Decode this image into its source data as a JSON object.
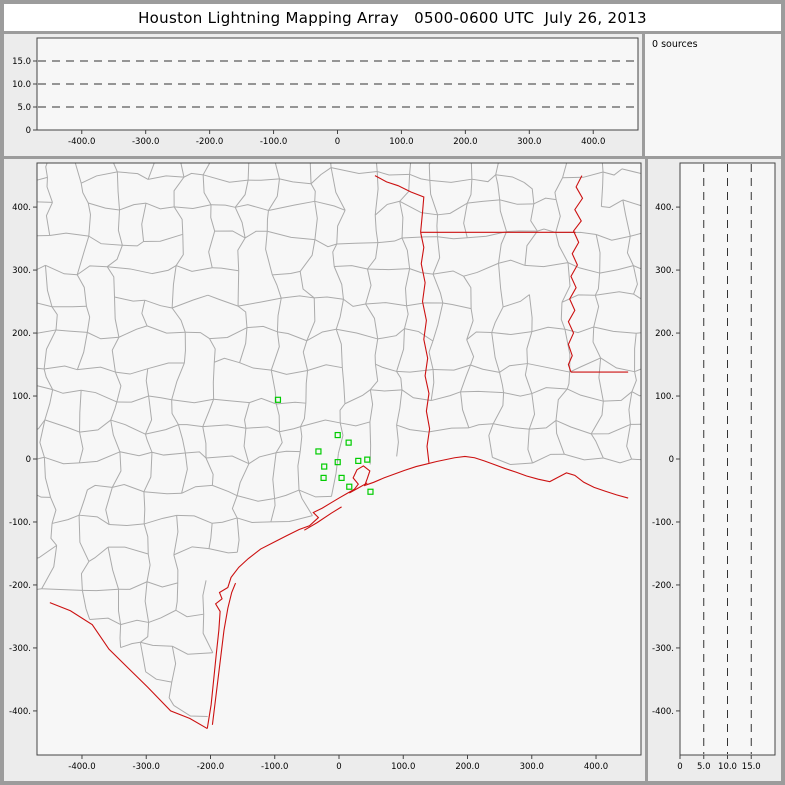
{
  "title": "Houston Lightning Mapping Array   0500-0600 UTC  July 26, 2013",
  "sources_panel": {
    "label": "0 sources"
  },
  "colors": {
    "county": "#ababab",
    "border": "#cc1111",
    "station": "#00cc00",
    "dash": "#333333",
    "axis": "#444444",
    "plot_bg": "#f7f7f7",
    "frame": "#9c9c9c"
  },
  "top_panel": {
    "xlim": [
      -470,
      470
    ],
    "ylim": [
      0,
      20
    ],
    "dash_y": [
      5,
      10,
      15
    ],
    "xticks": [
      {
        "v": -400,
        "l": "-400.0"
      },
      {
        "v": -300,
        "l": "-300.0"
      },
      {
        "v": -200,
        "l": "-200.0"
      },
      {
        "v": -100,
        "l": "-100.0"
      },
      {
        "v": 0,
        "l": "0"
      },
      {
        "v": 100,
        "l": "100.0"
      },
      {
        "v": 200,
        "l": "200.0"
      },
      {
        "v": 300,
        "l": "300.0"
      },
      {
        "v": 400,
        "l": "400.0"
      }
    ],
    "yticks": [
      {
        "v": 15,
        "l": "15.0"
      },
      {
        "v": 10,
        "l": "10.0"
      },
      {
        "v": 5,
        "l": "5.0"
      },
      {
        "v": 0,
        "l": "0"
      }
    ]
  },
  "map_panel": {
    "xlim": [
      -470,
      470
    ],
    "ylim": [
      -470,
      470
    ],
    "xticks": [
      {
        "v": -400,
        "l": "-400.0"
      },
      {
        "v": -300,
        "l": "-300.0"
      },
      {
        "v": -200,
        "l": "-200.0"
      },
      {
        "v": -100,
        "l": "-100.0"
      },
      {
        "v": 0,
        "l": "0"
      },
      {
        "v": 100,
        "l": "100.0"
      },
      {
        "v": 200,
        "l": "200.0"
      },
      {
        "v": 300,
        "l": "300.0"
      },
      {
        "v": 400,
        "l": "400.0"
      }
    ],
    "yticks": [
      {
        "v": 400,
        "l": "400."
      },
      {
        "v": 300,
        "l": "300."
      },
      {
        "v": 200,
        "l": "200."
      },
      {
        "v": 100,
        "l": "100."
      },
      {
        "v": 0,
        "l": "0"
      },
      {
        "v": -100,
        "l": "-100."
      },
      {
        "v": -200,
        "l": "-200."
      },
      {
        "v": -300,
        "l": "-300."
      },
      {
        "v": -400,
        "l": "-400."
      }
    ]
  },
  "right_panel": {
    "xlim": [
      0,
      20
    ],
    "ylim": [
      -470,
      470
    ],
    "dash_x": [
      5,
      10,
      15
    ],
    "xticks": [
      {
        "v": 0,
        "l": "0"
      },
      {
        "v": 5,
        "l": "5.0"
      },
      {
        "v": 10,
        "l": "10.0"
      },
      {
        "v": 15,
        "l": "15.0"
      }
    ],
    "yticks": [
      {
        "v": 400,
        "l": "400."
      },
      {
        "v": 300,
        "l": "300."
      },
      {
        "v": 200,
        "l": "200."
      },
      {
        "v": 100,
        "l": "100."
      },
      {
        "v": 0,
        "l": "0"
      },
      {
        "v": -100,
        "l": "-100."
      },
      {
        "v": -200,
        "l": "-200."
      },
      {
        "v": -300,
        "l": "-300."
      },
      {
        "v": -400,
        "l": "-400."
      }
    ]
  },
  "map_layers": {
    "land_boundary": [
      [
        -450,
        -228
      ],
      [
        -418,
        -241
      ],
      [
        -384,
        -263
      ],
      [
        -358,
        -302
      ],
      [
        -328,
        -332
      ],
      [
        -298,
        -362
      ],
      [
        -262,
        -400
      ],
      [
        -232,
        -412
      ],
      [
        -205,
        -428
      ],
      [
        -195,
        -350
      ],
      [
        -186,
        -272
      ],
      [
        -172,
        -204
      ],
      [
        -155,
        -172
      ],
      [
        -120,
        -142
      ],
      [
        -80,
        -121
      ],
      [
        -45,
        -105
      ],
      [
        -12,
        -70
      ],
      [
        24,
        -48
      ],
      [
        52,
        -38
      ],
      [
        100,
        -18
      ],
      [
        150,
        -4
      ],
      [
        196,
        4
      ],
      [
        242,
        -9
      ],
      [
        292,
        -27
      ],
      [
        342,
        -30
      ],
      [
        398,
        -45
      ],
      [
        450,
        -62
      ]
    ],
    "coastline": [
      [
        -205,
        -428
      ],
      [
        -199,
        -390
      ],
      [
        -195,
        -350
      ],
      [
        -191,
        -310
      ],
      [
        -187,
        -272
      ],
      [
        -185,
        -242
      ],
      [
        -192,
        -230
      ],
      [
        -182,
        -222
      ],
      [
        -186,
        -212
      ],
      [
        -173,
        -204
      ],
      [
        -168,
        -188
      ],
      [
        -156,
        -172
      ],
      [
        -141,
        -158
      ],
      [
        -122,
        -143
      ],
      [
        -101,
        -132
      ],
      [
        -82,
        -122
      ],
      [
        -62,
        -112
      ],
      [
        -46,
        -106
      ],
      [
        -32,
        -93
      ],
      [
        -40,
        -85
      ],
      [
        -26,
        -78
      ],
      [
        -13,
        -70
      ],
      [
        0,
        -62
      ],
      [
        12,
        -55
      ],
      [
        24,
        -48
      ],
      [
        30,
        -40
      ],
      [
        22,
        -30
      ],
      [
        28,
        -17
      ],
      [
        38,
        -11
      ],
      [
        48,
        -19
      ],
      [
        44,
        -31
      ],
      [
        40,
        -42
      ],
      [
        54,
        -37
      ],
      [
        70,
        -30
      ],
      [
        86,
        -24
      ],
      [
        102,
        -18
      ],
      [
        120,
        -12
      ],
      [
        136,
        -8
      ],
      [
        152,
        -4
      ],
      [
        166,
        -1
      ],
      [
        180,
        2
      ],
      [
        196,
        4
      ],
      [
        211,
        2
      ],
      [
        226,
        -3
      ],
      [
        242,
        -9
      ],
      [
        258,
        -15
      ],
      [
        276,
        -21
      ],
      [
        292,
        -27
      ],
      [
        310,
        -32
      ],
      [
        328,
        -36
      ],
      [
        341,
        -29
      ],
      [
        354,
        -22
      ],
      [
        367,
        -26
      ],
      [
        381,
        -37
      ],
      [
        397,
        -45
      ],
      [
        414,
        -51
      ],
      [
        432,
        -57
      ],
      [
        450,
        -62
      ]
    ],
    "rio_grande": [
      [
        -205,
        -428
      ],
      [
        -232,
        -412
      ],
      [
        -262,
        -400
      ],
      [
        -298,
        -362
      ],
      [
        -328,
        -332
      ],
      [
        -358,
        -302
      ],
      [
        -384,
        -263
      ],
      [
        -418,
        -241
      ],
      [
        -450,
        -228
      ]
    ],
    "padre_island": [
      [
        -197,
        -422
      ],
      [
        -191,
        -372
      ],
      [
        -185,
        -322
      ],
      [
        -179,
        -272
      ],
      [
        -173,
        -237
      ],
      [
        -167,
        -212
      ],
      [
        -161,
        -197
      ]
    ],
    "matagorda_peninsula": [
      [
        -54,
        -113
      ],
      [
        -34,
        -101
      ],
      [
        -12,
        -86
      ],
      [
        4,
        -76
      ]
    ],
    "galveston_island": [
      [
        16,
        -54
      ],
      [
        30,
        -46
      ],
      [
        44,
        -38
      ]
    ],
    "sabine_border": [
      [
        140,
        -6
      ],
      [
        137,
        20
      ],
      [
        141,
        48
      ],
      [
        136,
        76
      ],
      [
        140,
        104
      ],
      [
        134,
        132
      ],
      [
        138,
        160
      ],
      [
        132,
        190
      ],
      [
        136,
        220
      ],
      [
        130,
        250
      ],
      [
        134,
        280
      ],
      [
        128,
        310
      ],
      [
        132,
        336
      ],
      [
        127,
        360
      ]
    ],
    "red_river": [
      [
        127,
        360
      ],
      [
        130,
        392
      ],
      [
        132,
        416
      ],
      [
        112,
        424
      ],
      [
        92,
        434
      ],
      [
        74,
        440
      ],
      [
        56,
        450
      ]
    ],
    "ark_la_border": [
      [
        127,
        360
      ],
      [
        368,
        360
      ]
    ],
    "ms_river": [
      [
        378,
        450
      ],
      [
        369,
        432
      ],
      [
        379,
        414
      ],
      [
        367,
        396
      ],
      [
        377,
        378
      ],
      [
        365,
        362
      ],
      [
        373,
        344
      ],
      [
        363,
        326
      ],
      [
        371,
        308
      ],
      [
        361,
        290
      ],
      [
        369,
        272
      ],
      [
        359,
        254
      ],
      [
        367,
        236
      ],
      [
        357,
        218
      ],
      [
        365,
        200
      ],
      [
        357,
        182
      ],
      [
        363,
        164
      ],
      [
        357,
        150
      ],
      [
        361,
        138
      ]
    ],
    "la_ms_border": [
      [
        361,
        138
      ],
      [
        450,
        138
      ]
    ]
  },
  "chart_data": [
    {
      "type": "scatter",
      "panel": "altitude-vs-east-west",
      "xlim": [
        -470,
        470
      ],
      "ylim": [
        0,
        20
      ],
      "x_ticks": [
        -400,
        -300,
        -200,
        -100,
        0,
        100,
        200,
        300,
        400
      ],
      "y_ticks": [
        0,
        5,
        10,
        15
      ],
      "gridlines_y": [
        5,
        10,
        15
      ],
      "grid": "dashed horizontal",
      "annotation": "0 sources",
      "series": [
        {
          "name": "lightning-sources",
          "points": []
        }
      ]
    },
    {
      "type": "scatter",
      "panel": "plan-view-map",
      "xlim": [
        -470,
        470
      ],
      "ylim": [
        -470,
        470
      ],
      "x_ticks": [
        -400,
        -300,
        -200,
        -100,
        0,
        100,
        200,
        300,
        400
      ],
      "y_ticks": [
        400,
        300,
        200,
        100,
        0,
        -100,
        -200,
        -300,
        -400
      ],
      "basemap": "Texas/Louisiana county lines (gray), state borders and Gulf coastline (red)",
      "series": [
        {
          "name": "lma-stations",
          "marker": "open-square",
          "color": "#00cc00",
          "points": [
            [
              -95,
              94
            ],
            [
              -2,
              38
            ],
            [
              15,
              26
            ],
            [
              -32,
              12
            ],
            [
              -23,
              -12
            ],
            [
              -2,
              -5
            ],
            [
              30,
              -3
            ],
            [
              44,
              -1
            ],
            [
              -24,
              -30
            ],
            [
              4,
              -30
            ],
            [
              16,
              -44
            ],
            [
              49,
              -52
            ]
          ]
        },
        {
          "name": "lightning-sources",
          "points": []
        }
      ]
    },
    {
      "type": "scatter",
      "panel": "altitude-vs-north-south",
      "xlim": [
        0,
        20
      ],
      "ylim": [
        -470,
        470
      ],
      "x_ticks": [
        0,
        5,
        10,
        15
      ],
      "y_ticks": [
        400,
        300,
        200,
        100,
        0,
        -100,
        -200,
        -300,
        -400
      ],
      "gridlines_x": [
        5,
        10,
        15
      ],
      "grid": "dashed vertical",
      "series": [
        {
          "name": "lightning-sources",
          "points": []
        }
      ]
    }
  ]
}
